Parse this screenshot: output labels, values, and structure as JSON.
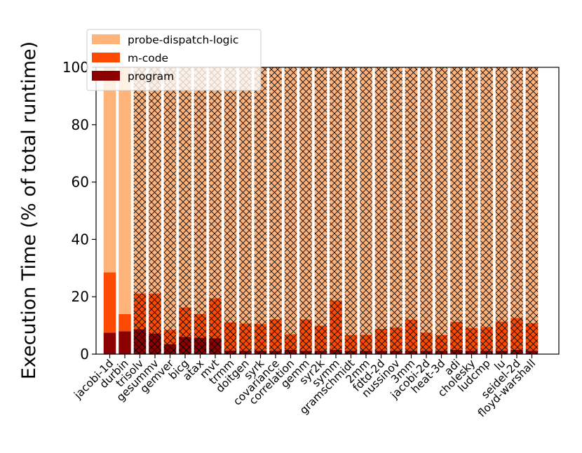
{
  "chart_data": {
    "type": "bar",
    "stacked": true,
    "title": "",
    "xlabel": "",
    "ylabel": "Execution Time (% of total runtime)",
    "ylim": [
      0,
      100
    ],
    "yticks": [
      "0",
      "20",
      "40",
      "60",
      "80",
      "100"
    ],
    "legend_position": "top-left",
    "categories": [
      "jacobi-1d",
      "durbin",
      "trisolv",
      "gesummv",
      "gemver",
      "bicg",
      "atax",
      "mvt",
      "trmm",
      "doitgen",
      "syrk",
      "covariance",
      "correlation",
      "gemm",
      "syr2k",
      "symm",
      "gramschmidt",
      "2mm",
      "fdtd-2d",
      "nussinov",
      "3mm",
      "jacobi-2d",
      "heat-3d",
      "adi",
      "cholesky",
      "ludcmp",
      "lu",
      "seidel-2d",
      "floyd-warshall"
    ],
    "series": [
      {
        "name": "program",
        "color": "#8b0000",
        "values": [
          7.5,
          8,
          8.7,
          7.2,
          3.5,
          6,
          5.8,
          5.5,
          1.3,
          1.2,
          1.2,
          1.2,
          1.5,
          1.2,
          1.2,
          1.5,
          1.2,
          1.2,
          1.2,
          1.2,
          1.2,
          1.2,
          1.2,
          1.5,
          1.2,
          1.2,
          1.2,
          1.5,
          1.2
        ]
      },
      {
        "name": "m-code",
        "color": "#fc4a03",
        "values": [
          21,
          6,
          12.5,
          14,
          5,
          10.3,
          8.2,
          14,
          9.8,
          9.5,
          9.3,
          11,
          5.5,
          10.9,
          8.7,
          17.2,
          5.5,
          5.6,
          7.6,
          8.1,
          10.8,
          6.3,
          5.5,
          9.8,
          8,
          8.3,
          10.2,
          11.1,
          9.6
        ]
      },
      {
        "name": "probe-dispatch-logic",
        "color": "#fdb37a",
        "values": [
          71.5,
          86,
          78.8,
          78.8,
          91.5,
          83.7,
          86,
          80.5,
          88.9,
          89.3,
          89.5,
          87.8,
          93,
          87.9,
          90.1,
          81.3,
          93.3,
          93.2,
          91.2,
          90.7,
          88,
          92.5,
          93.3,
          88.7,
          90.8,
          90.5,
          88.6,
          87.4,
          89.2
        ]
      }
    ],
    "hatched_from_category": "trisolv"
  }
}
